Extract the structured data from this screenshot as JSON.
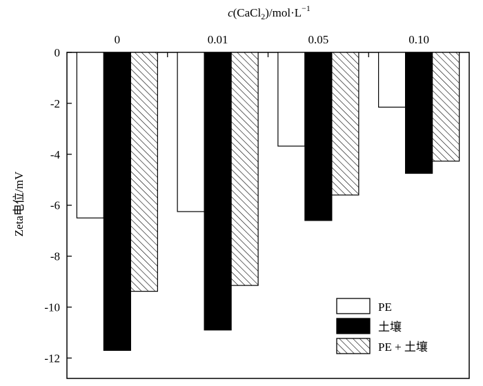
{
  "chart_data": {
    "type": "bar",
    "title": "",
    "xlabel": "c(CaCl₂)/mol·L⁻¹",
    "xlabel_parts": {
      "italic": "c",
      "rest": "(CaCl",
      "sub": "2",
      "tail": ")/mol·L",
      "sup": "−1"
    },
    "x_axis_position": "top",
    "ylabel": "Zeta电位/mV",
    "ylim": [
      -12.8,
      0
    ],
    "yticks": [
      0,
      -2,
      -4,
      -6,
      -8,
      -10,
      -12
    ],
    "ytick_labels": [
      "0",
      "-2",
      "-4",
      "-6",
      "-8",
      "-10",
      "-12"
    ],
    "categories": [
      "0",
      "0.01",
      "0.05",
      "0.10"
    ],
    "series": [
      {
        "name": "PE",
        "fill": "white",
        "values": [
          -6.5,
          -6.25,
          -3.68,
          -2.15
        ]
      },
      {
        "name": "土壤",
        "fill": "black",
        "values": [
          -11.7,
          -10.9,
          -6.6,
          -4.75
        ]
      },
      {
        "name": "PE + 土壤",
        "fill": "hatch",
        "values": [
          -9.38,
          -9.15,
          -5.6,
          -4.27
        ]
      }
    ],
    "legend_position": "bottom-right",
    "grid": false
  },
  "colors": {
    "axis": "#000000",
    "bar_stroke": "#000000",
    "black_fill": "#000000",
    "white_fill": "#ffffff"
  }
}
